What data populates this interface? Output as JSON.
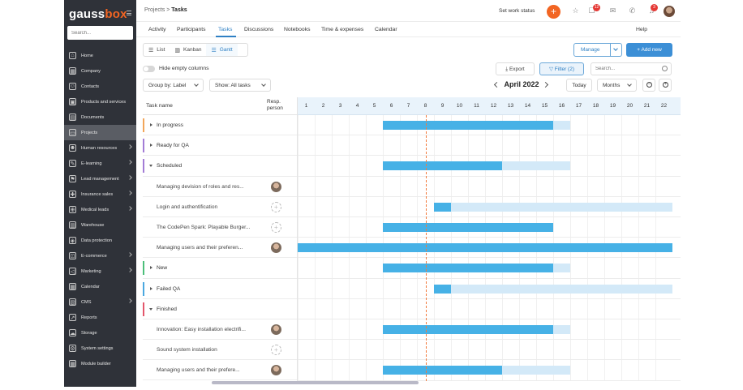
{
  "brand": {
    "name_prefix": "gauss",
    "name_accent": "box"
  },
  "sidebar": {
    "search_placeholder": "Search...",
    "items": [
      {
        "label": "Home",
        "icon": "home-icon",
        "chevron": false,
        "active": false
      },
      {
        "label": "Company",
        "icon": "building-icon",
        "chevron": false,
        "active": false
      },
      {
        "label": "Contacts",
        "icon": "contacts-icon",
        "chevron": false,
        "active": false
      },
      {
        "label": "Products and services",
        "icon": "box-icon",
        "chevron": false,
        "active": false
      },
      {
        "label": "Documents",
        "icon": "document-icon",
        "chevron": false,
        "active": false
      },
      {
        "label": "Projects",
        "icon": "folder-icon",
        "chevron": false,
        "active": true
      },
      {
        "label": "Human resources",
        "icon": "people-icon",
        "chevron": true,
        "active": false
      },
      {
        "label": "E-learning",
        "icon": "learning-icon",
        "chevron": true,
        "active": false
      },
      {
        "label": "Lead management",
        "icon": "lead-icon",
        "chevron": true,
        "active": false
      },
      {
        "label": "Insurance sales",
        "icon": "insurance-icon",
        "chevron": true,
        "active": false
      },
      {
        "label": "Medical leads",
        "icon": "medical-icon",
        "chevron": true,
        "active": false
      },
      {
        "label": "Warehouse",
        "icon": "warehouse-icon",
        "chevron": false,
        "active": false
      },
      {
        "label": "Data protection",
        "icon": "shield-icon",
        "chevron": false,
        "active": false
      },
      {
        "label": "E-commerce",
        "icon": "cart-icon",
        "chevron": true,
        "active": false
      },
      {
        "label": "Marketing",
        "icon": "megaphone-icon",
        "chevron": true,
        "active": false
      },
      {
        "label": "Calendar",
        "icon": "calendar-icon",
        "chevron": false,
        "active": false
      },
      {
        "label": "CMS",
        "icon": "cms-icon",
        "chevron": true,
        "active": false
      },
      {
        "label": "Reports",
        "icon": "chart-icon",
        "chevron": false,
        "active": false
      },
      {
        "label": "Storage",
        "icon": "cloud-icon",
        "chevron": false,
        "active": false
      },
      {
        "label": "System settings",
        "icon": "gear-icon",
        "chevron": false,
        "active": false
      },
      {
        "label": "Module builder",
        "icon": "grid-icon",
        "chevron": false,
        "active": false
      }
    ]
  },
  "topbar": {
    "breadcrumb_parent": "Projects",
    "breadcrumb_sep": ">",
    "breadcrumb_current": "Tasks",
    "work_status": "Set work status",
    "plus": "+",
    "notifications_badge": "12",
    "alerts_badge": "3"
  },
  "tabs": {
    "items": [
      "Activity",
      "Participants",
      "Tasks",
      "Discussions",
      "Notebooks",
      "Time & expenses",
      "Calendar"
    ],
    "active": "Tasks",
    "help": "Help"
  },
  "views": {
    "list": "List",
    "kanban": "Kanban",
    "gantt": "Gantt",
    "active": "Gantt"
  },
  "actions": {
    "manage": "Manage",
    "add_new": "+ Add new",
    "export": "Export",
    "filter": "Filter (2)",
    "search_placeholder": "Search..."
  },
  "options": {
    "hide_empty_columns": "Hide empty columns",
    "group_by": "Group by: Label",
    "show": "Show: All tasks"
  },
  "timeline": {
    "month": "April 2022",
    "today": "Today",
    "scale": "Months",
    "days": [
      1,
      2,
      3,
      4,
      5,
      6,
      7,
      8,
      9,
      10,
      11,
      12,
      13,
      14,
      15,
      16,
      17,
      18,
      19,
      20,
      21,
      22
    ],
    "today_day": 9
  },
  "columns": {
    "task_name": "Task name",
    "resp_person_line1": "Resp.",
    "resp_person_line2": "person"
  },
  "rows": [
    {
      "type": "group",
      "name": "In progress",
      "color": "#f2a65a",
      "expanded": false,
      "start": 6,
      "end": 17,
      "progress_end": 16
    },
    {
      "type": "group",
      "name": "Ready for QA",
      "color": "#a37cd6",
      "expanded": false
    },
    {
      "type": "group",
      "name": "Scheduled",
      "color": "#a37cd6",
      "expanded": true,
      "start": 6,
      "end": 17,
      "progress_end": 13
    },
    {
      "type": "task",
      "name": "Managing devision of roles and res...",
      "person": "pic"
    },
    {
      "type": "task",
      "name": "Login and authentification",
      "person": "empty",
      "start": 9,
      "end": 23,
      "progress_end": 10
    },
    {
      "type": "task",
      "name": "The CodePen Spark: Playable Burger...",
      "person": "empty",
      "start": 6,
      "end": 16,
      "progress_end": 16
    },
    {
      "type": "task",
      "name": "Managing users and their preferen...",
      "person": "pic",
      "start": 1,
      "end": 23,
      "progress_end": 23
    },
    {
      "type": "group",
      "name": "New",
      "color": "#4cbf7a",
      "expanded": false,
      "start": 6,
      "end": 17,
      "progress_end": 16
    },
    {
      "type": "group",
      "name": "Failed QA",
      "color": "#4aa8e0",
      "expanded": false,
      "start": 9,
      "end": 23,
      "progress_end": 10
    },
    {
      "type": "group",
      "name": "Finished",
      "color": "#e3566b",
      "expanded": true
    },
    {
      "type": "task",
      "name": "Innovation: Easy installation electrifi...",
      "person": "pic",
      "start": 6,
      "end": 17,
      "progress_end": 16
    },
    {
      "type": "task",
      "name": "Sound system installation",
      "person": "empty"
    },
    {
      "type": "task",
      "name": "Managing users and their prefere...",
      "person": "pic",
      "start": 6,
      "end": 17,
      "progress_end": 13
    }
  ]
}
